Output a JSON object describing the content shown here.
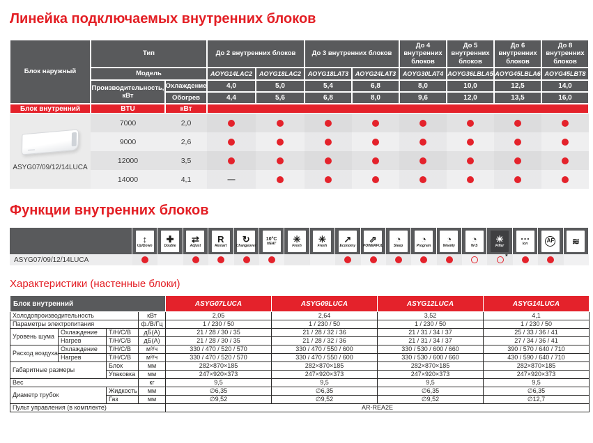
{
  "colors": {
    "accent_red": "#e4222b",
    "title_red": "#e31e24",
    "header_gray": "#595a5c"
  },
  "glyph_map": {
    "dash": "—",
    "star": "*"
  },
  "lineup": {
    "title": "Линейка подключаемых внутренних блоков",
    "corner_label": "Блок наружный",
    "type_label": "Тип",
    "model_label": "Модель",
    "perf_label": "Производительность, кВт",
    "cooling_label": "Охлаждение",
    "heating_label": "Обогрев",
    "groups": [
      {
        "label": "До 2 внутренних блоков",
        "span": 2
      },
      {
        "label": "До 3 внутренних блоков",
        "span": 2
      },
      {
        "label": "До 4 внутренних блоков",
        "span": 1
      },
      {
        "label": "До 5 внутренних блоков",
        "span": 1
      },
      {
        "label": "До 6 внутренних блоков",
        "span": 1
      },
      {
        "label": "До 8 внутренних блоков",
        "span": 1
      }
    ],
    "models": [
      "AOYG14LAC2",
      "AOYG18LAC2",
      "AOYG18LAT3",
      "AOYG24LAT3",
      "AOYG30LAT4",
      "AOYG36LBLA5",
      "AOYG45LBLA6",
      "AOYG45LBT8"
    ],
    "cooling_values": [
      "4,0",
      "5,0",
      "5,4",
      "6,8",
      "8,0",
      "10,0",
      "12,5",
      "14,0"
    ],
    "heating_values": [
      "4,4",
      "5,6",
      "6,8",
      "8,0",
      "9,6",
      "12,0",
      "13,5",
      "16,0"
    ],
    "indoor_row": {
      "label": "Блок внутренний",
      "btu": "BTU",
      "kw": "кВт"
    },
    "photo_caption": "ASYG07/09/12/14LUCA",
    "rows": [
      {
        "btu": "7000",
        "kw": "2,0",
        "marks": [
          "dot",
          "dot",
          "dot",
          "dot",
          "dot",
          "dot",
          "dot",
          "dot"
        ]
      },
      {
        "btu": "9000",
        "kw": "2,6",
        "marks": [
          "dot",
          "dot",
          "dot",
          "dot",
          "dot",
          "dot",
          "dot",
          "dot"
        ]
      },
      {
        "btu": "12000",
        "kw": "3,5",
        "marks": [
          "dot",
          "dot",
          "dot",
          "dot",
          "dot",
          "dot",
          "dot",
          "dot"
        ]
      },
      {
        "btu": "14000",
        "kw": "4,1",
        "marks": [
          "dash",
          "dot",
          "dot",
          "dot",
          "dot",
          "dot",
          "dot",
          "dot"
        ]
      }
    ]
  },
  "functions": {
    "title": "Функции внутренних блоков",
    "row_label": "ASYG07/09/12/14LUCA",
    "items": [
      {
        "name": "up-down-swing-icon",
        "glyph": "↕",
        "label": "Up/Down",
        "variant": "",
        "mark": "dot"
      },
      {
        "name": "double-swing-icon",
        "glyph": "✚",
        "label": "Double",
        "variant": "",
        "mark": "none"
      },
      {
        "name": "adjust-airflow-icon",
        "glyph": "⇄",
        "label": "Adjust",
        "variant": "",
        "mark": "dot"
      },
      {
        "name": "auto-restart-icon",
        "glyph": "R",
        "label": "Restart",
        "variant": "",
        "mark": "dot"
      },
      {
        "name": "auto-changeover-icon",
        "glyph": "↻",
        "label": "Changeover",
        "variant": "",
        "mark": "dot"
      },
      {
        "name": "heat-10c-icon",
        "glyph": "10°C",
        "label": "HEAT",
        "variant": "smalltext",
        "mark": "dot"
      },
      {
        "name": "fresh-air-icon",
        "glyph": "✳",
        "label": "Fresh",
        "variant": "",
        "mark": "none"
      },
      {
        "name": "fan-icon",
        "glyph": "✳",
        "label": "Fresh",
        "variant": "",
        "mark": "none"
      },
      {
        "name": "economy-icon",
        "glyph": "↗",
        "label": "Economy",
        "variant": "",
        "mark": "dot"
      },
      {
        "name": "powerful-icon",
        "glyph": "⇗",
        "label": "POWERFUL",
        "variant": "",
        "mark": "dot"
      },
      {
        "name": "sleep-timer-icon",
        "glyph": "◔",
        "label": "Sleep",
        "variant": "",
        "mark": "dot"
      },
      {
        "name": "program-timer-icon",
        "glyph": "◔",
        "label": "Program",
        "variant": "",
        "mark": "dot"
      },
      {
        "name": "weekly-timer-icon",
        "glyph": "◔",
        "label": "Weekly",
        "variant": "",
        "mark": "dot"
      },
      {
        "name": "ws-timer-icon",
        "glyph": "◔",
        "label": "W-S",
        "variant": "",
        "mark": "circle"
      },
      {
        "name": "filter-icon",
        "glyph": "☀",
        "label": "Filter",
        "variant": "inverted",
        "mark": "circle-star"
      },
      {
        "name": "ion-icon",
        "glyph": "∘∘∘",
        "label": "Ion",
        "variant": "smalltext",
        "mark": "dot"
      },
      {
        "name": "apple-catechin-filter-icon",
        "glyph": "AF",
        "label": "",
        "variant": "circle",
        "mark": "dot"
      },
      {
        "name": "humidity-icon",
        "glyph": "≋",
        "label": "",
        "variant": "",
        "mark": "none"
      }
    ]
  },
  "specs": {
    "title": "Характеристики (настенные блоки)",
    "corner_label": "Блок внутренний",
    "models": [
      "ASYG07LUCA",
      "ASYG09LUCA",
      "ASYG12LUCA",
      "ASYG14LUCA"
    ],
    "rows": [
      {
        "cells": [
          {
            "t": "Холодопроизводительность",
            "cs": 3,
            "k": "label"
          },
          {
            "t": "кВт",
            "k": "unit"
          },
          {
            "t": "2,05"
          },
          {
            "t": "2,64"
          },
          {
            "t": "3,52"
          },
          {
            "t": "4,1"
          }
        ]
      },
      {
        "cells": [
          {
            "t": "Параметры электропитания",
            "cs": 3,
            "k": "label"
          },
          {
            "t": "ф./В/Гц",
            "k": "unit"
          },
          {
            "t": "1 / 230 / 50"
          },
          {
            "t": "1 / 230 / 50"
          },
          {
            "t": "1 / 230 / 50"
          },
          {
            "t": "1 / 230 / 50"
          }
        ]
      },
      {
        "cells": [
          {
            "t": "Уровень шума",
            "rs": 2,
            "k": "label"
          },
          {
            "t": "Охлаждение",
            "k": "sub"
          },
          {
            "t": "Т/Н/С/В",
            "k": "sub"
          },
          {
            "t": "дБ(А)",
            "k": "unit"
          },
          {
            "t": "21 / 28 / 30 / 35"
          },
          {
            "t": "21 / 28 / 32 / 36"
          },
          {
            "t": "21 / 31 / 34 / 37"
          },
          {
            "t": "25 / 33 / 36 / 41"
          }
        ]
      },
      {
        "cells": [
          {
            "t": "Нагрев",
            "k": "sub"
          },
          {
            "t": "Т/Н/С/В",
            "k": "sub"
          },
          {
            "t": "дБ(А)",
            "k": "unit"
          },
          {
            "t": "21 / 28 / 30 / 35"
          },
          {
            "t": "21 / 28 / 32 / 36"
          },
          {
            "t": "21 / 31 / 34 / 37"
          },
          {
            "t": "27 / 34 / 36 / 41"
          }
        ]
      },
      {
        "cells": [
          {
            "t": "Расход воздуха",
            "rs": 2,
            "k": "label"
          },
          {
            "t": "Охлаждение",
            "k": "sub"
          },
          {
            "t": "Т/Н/С/В",
            "k": "sub"
          },
          {
            "t": "м³/ч",
            "k": "unit"
          },
          {
            "t": "330 / 470 / 520 / 570"
          },
          {
            "t": "330 / 470 / 550 / 600"
          },
          {
            "t": "330 / 530 / 600 / 660"
          },
          {
            "t": "390 / 570 / 640 / 710"
          }
        ]
      },
      {
        "cells": [
          {
            "t": "Нагрев",
            "k": "sub"
          },
          {
            "t": "Т/Н/С/В",
            "k": "sub"
          },
          {
            "t": "м³/ч",
            "k": "unit"
          },
          {
            "t": "330 / 470 / 520 / 570"
          },
          {
            "t": "330 / 470 / 550 / 600"
          },
          {
            "t": "330 / 530 / 600 / 660"
          },
          {
            "t": "430 / 590 / 640 / 710"
          }
        ]
      },
      {
        "cells": [
          {
            "t": "Габаритные размеры",
            "cs": 2,
            "rs": 2,
            "k": "label"
          },
          {
            "t": "Блок",
            "k": "sub"
          },
          {
            "t": "мм",
            "k": "unit"
          },
          {
            "t": "282×870×185"
          },
          {
            "t": "282×870×185"
          },
          {
            "t": "282×870×185"
          },
          {
            "t": "282×870×185"
          }
        ]
      },
      {
        "cells": [
          {
            "t": "Упаковка",
            "k": "sub"
          },
          {
            "t": "мм",
            "k": "unit"
          },
          {
            "t": "247×920×373"
          },
          {
            "t": "247×920×373"
          },
          {
            "t": "247×920×373"
          },
          {
            "t": "247×920×373"
          }
        ]
      },
      {
        "cells": [
          {
            "t": "Вес",
            "cs": 3,
            "k": "label"
          },
          {
            "t": "кг",
            "k": "unit"
          },
          {
            "t": "9,5"
          },
          {
            "t": "9,5"
          },
          {
            "t": "9,5"
          },
          {
            "t": "9,5"
          }
        ]
      },
      {
        "cells": [
          {
            "t": "Диаметр трубок",
            "cs": 2,
            "rs": 2,
            "k": "label"
          },
          {
            "t": "Жидкость",
            "k": "sub"
          },
          {
            "t": "мм",
            "k": "unit"
          },
          {
            "t": "∅6,35"
          },
          {
            "t": "∅6,35"
          },
          {
            "t": "∅6,35"
          },
          {
            "t": "∅6,35"
          }
        ]
      },
      {
        "cells": [
          {
            "t": "Газ",
            "k": "sub"
          },
          {
            "t": "мм",
            "k": "unit"
          },
          {
            "t": "∅9,52"
          },
          {
            "t": "∅9,52"
          },
          {
            "t": "∅9,52"
          },
          {
            "t": "∅12,7"
          }
        ]
      },
      {
        "cells": [
          {
            "t": "Пульт управления (в комплекте)",
            "cs": 4,
            "k": "label"
          },
          {
            "t": "AR-REA2E",
            "cs": 4
          }
        ]
      }
    ]
  }
}
